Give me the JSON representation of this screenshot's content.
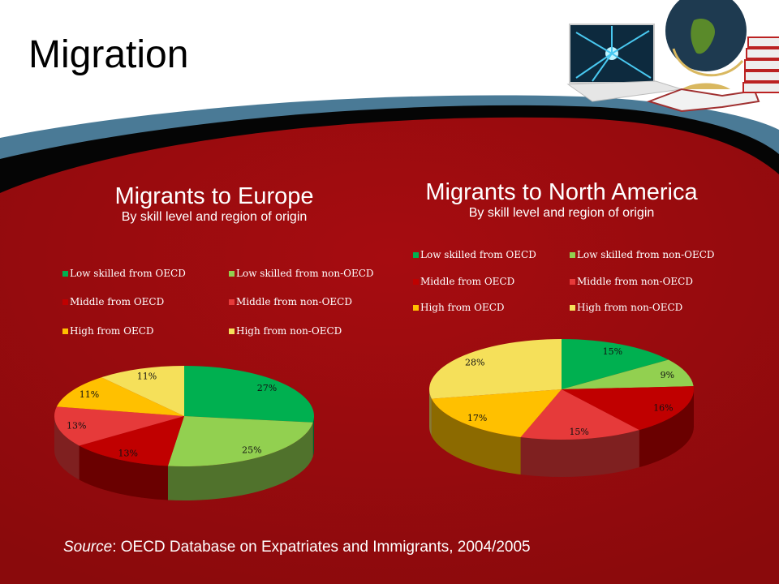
{
  "slide": {
    "title": "Migration",
    "source_label": "Source",
    "source_text": ": OECD Database on Expatriates and Immigrants, 2004/2005"
  },
  "colors": {
    "low_oecd": "#00b050",
    "low_non_oecd": "#92d050",
    "middle_oecd": "#c00000",
    "middle_non_oecd": "#e63a3a",
    "high_oecd": "#ffc000",
    "high_non_oecd": "#f5e05a",
    "background_red": "#a00c10",
    "band_blue": "#4a7a96",
    "band_black": "#000000"
  },
  "charts": [
    {
      "title": "Migrants to Europe",
      "subtitle": "By skill level and region of origin",
      "legend": [
        {
          "label": "Low skilled from OECD",
          "color": "#00b050"
        },
        {
          "label": "Low skilled from non-OECD",
          "color": "#92d050"
        },
        {
          "label": "Middle from OECD",
          "color": "#c00000"
        },
        {
          "label": "Middle from non-OECD",
          "color": "#e63a3a"
        },
        {
          "label": "High from OECD",
          "color": "#ffc000"
        },
        {
          "label": "High from non-OECD",
          "color": "#f5e05a"
        }
      ],
      "slice_labels": [
        "27%",
        "25%",
        "13%",
        "13%",
        "11%",
        "11%"
      ]
    },
    {
      "title": "Migrants to North America",
      "subtitle": "By skill level and region of origin",
      "legend": [
        {
          "label": "Low skilled from OECD",
          "color": "#00b050"
        },
        {
          "label": "Low skilled from non-OECD",
          "color": "#92d050"
        },
        {
          "label": "Middle from OECD",
          "color": "#c00000"
        },
        {
          "label": "Middle from non-OECD",
          "color": "#e63a3a"
        },
        {
          "label": "High from OECD",
          "color": "#ffc000"
        },
        {
          "label": "High from non-OECD",
          "color": "#f5e05a"
        }
      ],
      "slice_labels": [
        "15%",
        "9%",
        "16%",
        "15%",
        "17%",
        "28%"
      ]
    }
  ],
  "chart_data": [
    {
      "type": "pie",
      "title": "Migrants to Europe",
      "subtitle": "By skill level and region of origin",
      "categories": [
        "Low skilled from OECD",
        "Low skilled from non-OECD",
        "Middle from OECD",
        "Middle from non-OECD",
        "High from OECD",
        "High from non-OECD"
      ],
      "values": [
        27,
        25,
        13,
        13,
        11,
        11
      ],
      "unit": "%",
      "legend_position": "top",
      "style": "3d"
    },
    {
      "type": "pie",
      "title": "Migrants to North America",
      "subtitle": "By skill level and region of origin",
      "categories": [
        "Low skilled from OECD",
        "Low skilled from non-OECD",
        "Middle from OECD",
        "Middle from non-OECD",
        "High from OECD",
        "High from non-OECD"
      ],
      "values": [
        15,
        9,
        16,
        15,
        17,
        28
      ],
      "unit": "%",
      "legend_position": "top",
      "style": "3d"
    }
  ]
}
